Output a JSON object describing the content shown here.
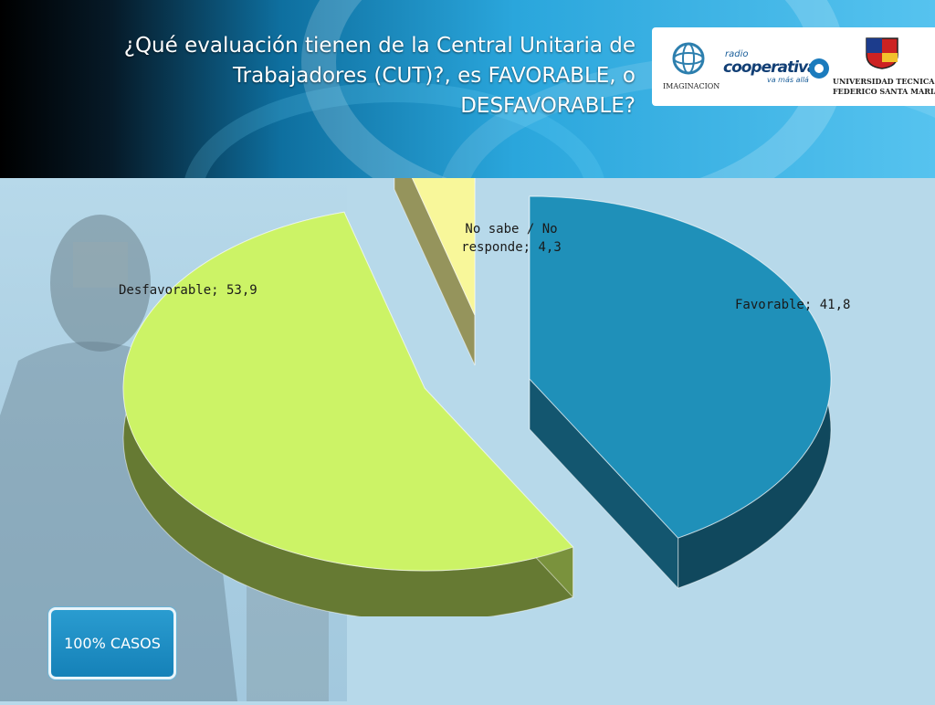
{
  "header": {
    "title": "¿Qué evaluación tienen de la Central Unitaria de Trabajadores (CUT)?, es FAVORABLE, o DESFAVORABLE?"
  },
  "logos": {
    "imaginacion": "IMAGINACION",
    "radio_small": "radio",
    "radio_main": "cooperativa",
    "radio_tag": "va más allá",
    "utfsm_line1": "UNIVERSIDAD TECNICA",
    "utfsm_line2": "FEDERICO SANTA MARIA"
  },
  "badge": {
    "label": "100% CASOS"
  },
  "colors": {
    "favorable": "#1f90b9",
    "desfavorable": "#ccf366",
    "no_sabe": "#f8f79a"
  },
  "chart_data": {
    "type": "pie",
    "style": "3d-exploded",
    "slices": [
      {
        "name": "Favorable",
        "value": 41.8,
        "label": "Favorable; 41,8",
        "color": "#1f90b9"
      },
      {
        "name": "Desfavorable",
        "value": 53.9,
        "label": "Desfavorable; 53,9",
        "color": "#ccf366"
      },
      {
        "name": "No sabe / No responde",
        "value": 4.3,
        "label_lines": [
          "No sabe / No",
          "responde; 4,3"
        ],
        "color": "#f8f79a"
      }
    ]
  }
}
